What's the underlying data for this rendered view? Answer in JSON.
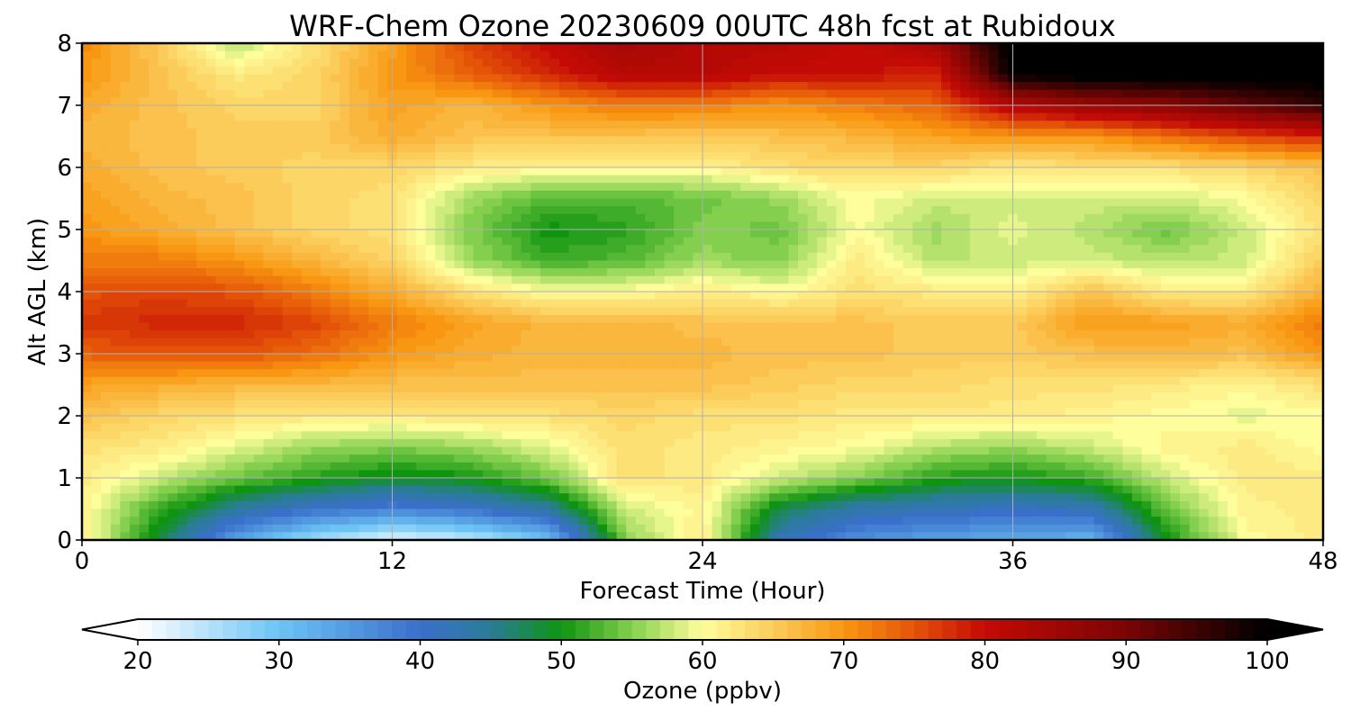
{
  "chart_data": {
    "type": "heatmap",
    "title": "WRF-Chem Ozone  20230609 00UTC 48h fcst at Rubidoux",
    "xlabel": "Forecast Time (Hour)",
    "ylabel": "Alt AGL (km)",
    "xlim": [
      0,
      48
    ],
    "ylim": [
      0,
      8
    ],
    "x_ticks": [
      0,
      12,
      24,
      36,
      48
    ],
    "y_ticks": [
      0,
      1,
      2,
      3,
      4,
      5,
      6,
      7,
      8
    ],
    "grid": true,
    "x": [
      0,
      3,
      6,
      9,
      12,
      15,
      18,
      21,
      24,
      27,
      30,
      33,
      36,
      39,
      42,
      45,
      48
    ],
    "y": [
      0,
      0.5,
      1,
      1.5,
      2,
      2.5,
      3,
      3.5,
      4,
      4.5,
      5,
      5.5,
      6,
      6.5,
      7,
      7.5,
      8
    ],
    "z": [
      [
        62,
        48,
        34,
        26,
        22,
        24,
        30,
        55,
        62,
        42,
        36,
        34,
        33,
        32,
        50,
        60,
        62
      ],
      [
        61,
        52,
        44,
        40,
        38,
        40,
        44,
        58,
        61,
        48,
        43,
        42,
        41,
        42,
        54,
        61,
        62
      ],
      [
        62,
        58,
        54,
        51,
        49,
        50,
        54,
        63,
        62,
        58,
        55,
        51,
        50,
        52,
        58,
        62,
        62
      ],
      [
        63,
        62,
        59,
        56,
        55,
        56,
        59,
        63,
        62,
        61,
        60,
        57,
        56,
        58,
        61,
        62,
        60
      ],
      [
        66,
        64,
        63,
        62,
        62,
        63,
        63,
        64,
        63,
        63,
        62,
        62,
        62,
        61,
        60,
        59,
        60
      ],
      [
        69,
        68,
        67,
        67,
        66,
        66,
        66,
        66,
        66,
        65,
        64,
        64,
        63,
        63,
        62,
        61,
        63
      ],
      [
        74,
        75,
        75,
        73,
        70,
        68,
        67,
        67,
        67,
        66,
        66,
        65,
        65,
        66,
        67,
        66,
        70
      ],
      [
        77,
        78,
        78,
        76,
        72,
        69,
        67,
        67,
        66,
        66,
        66,
        65,
        65,
        70,
        69,
        68,
        72
      ],
      [
        75,
        76,
        75,
        72,
        68,
        63,
        60,
        60,
        62,
        60,
        63,
        62,
        61,
        66,
        62,
        62,
        68
      ],
      [
        72,
        72,
        70,
        67,
        64,
        56,
        52,
        53,
        56,
        55,
        62,
        57,
        58,
        58,
        57,
        58,
        65
      ],
      [
        70,
        68,
        66,
        64,
        63,
        55,
        50,
        51,
        55,
        54,
        60,
        56,
        59,
        57,
        54,
        58,
        63
      ],
      [
        69,
        67,
        66,
        64,
        63,
        56,
        53,
        53,
        54,
        56,
        60,
        58,
        58,
        58,
        58,
        60,
        64
      ],
      [
        68,
        66,
        65,
        64,
        64,
        62,
        61,
        61,
        61,
        63,
        64,
        64,
        62,
        63,
        63,
        64,
        66
      ],
      [
        67,
        66,
        65,
        65,
        68,
        66,
        66,
        66,
        65,
        66,
        67,
        69,
        70,
        70,
        73,
        76,
        78
      ],
      [
        68,
        66,
        64,
        64,
        69,
        67,
        70,
        72,
        72,
        70,
        72,
        74,
        82,
        86,
        88,
        92,
        96
      ],
      [
        70,
        66,
        62,
        64,
        70,
        74,
        78,
        82,
        82,
        80,
        80,
        78,
        100,
        102,
        102,
        102,
        102
      ],
      [
        71,
        65,
        57,
        63,
        69,
        76,
        80,
        84,
        82,
        82,
        80,
        84,
        102,
        102,
        102,
        102,
        102
      ]
    ],
    "colorbar": {
      "label": "Ozone  (ppbv)",
      "ticks": [
        20,
        30,
        40,
        50,
        60,
        70,
        80,
        90,
        100
      ],
      "min": 20,
      "max": 100,
      "extend": "both",
      "under_color": "#ffffff",
      "over_color": "#000000",
      "stops": [
        {
          "v": 20,
          "c": "#ffffff"
        },
        {
          "v": 30,
          "c": "#6cc4f5"
        },
        {
          "v": 40,
          "c": "#3a6fcb"
        },
        {
          "v": 45,
          "c": "#2a7c98"
        },
        {
          "v": 50,
          "c": "#0f9410"
        },
        {
          "v": 55,
          "c": "#84d04e"
        },
        {
          "v": 60,
          "c": "#fffe9c"
        },
        {
          "v": 65,
          "c": "#fbcc5a"
        },
        {
          "v": 70,
          "c": "#f99712"
        },
        {
          "v": 75,
          "c": "#e45308"
        },
        {
          "v": 80,
          "c": "#c40a05"
        },
        {
          "v": 90,
          "c": "#7a0504"
        },
        {
          "v": 100,
          "c": "#000000"
        }
      ]
    }
  }
}
